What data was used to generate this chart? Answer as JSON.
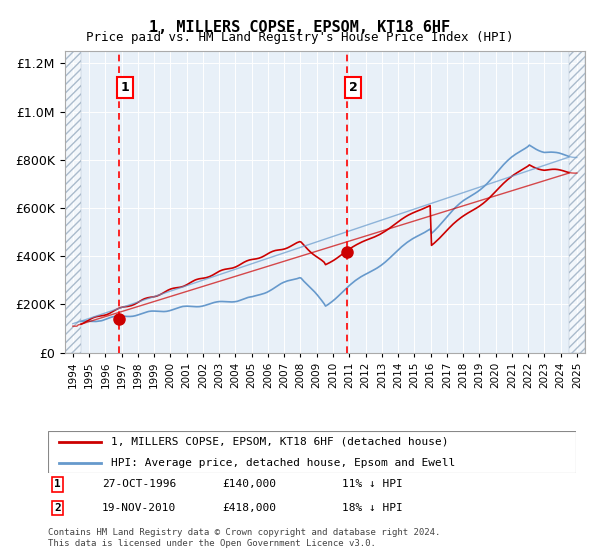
{
  "title": "1, MILLERS COPSE, EPSOM, KT18 6HF",
  "subtitle": "Price paid vs. HM Land Registry's House Price Index (HPI)",
  "footer": "Contains HM Land Registry data © Crown copyright and database right 2024.\nThis data is licensed under the Open Government Licence v3.0.",
  "legend_line1": "1, MILLERS COPSE, EPSOM, KT18 6HF (detached house)",
  "legend_line2": "HPI: Average price, detached house, Epsom and Ewell",
  "sale1_label": "1",
  "sale1_date": "27-OCT-1996",
  "sale1_price": "£140,000",
  "sale1_hpi": "11% ↓ HPI",
  "sale1_year": 1996.82,
  "sale1_value": 140000,
  "sale2_label": "2",
  "sale2_date": "19-NOV-2010",
  "sale2_price": "£418,000",
  "sale2_hpi": "18% ↓ HPI",
  "sale2_year": 2010.88,
  "sale2_value": 418000,
  "ylim": [
    0,
    1250000
  ],
  "xlim": [
    1993.5,
    2025.5
  ],
  "hatch_left_end": 1994.5,
  "hatch_right_start": 2024.5,
  "background_color": "#e8f0f8",
  "hatch_color": "#c8d4e0",
  "grid_color": "#ffffff",
  "red_line_color": "#cc0000",
  "blue_line_color": "#6699cc",
  "marker_color": "#cc0000"
}
